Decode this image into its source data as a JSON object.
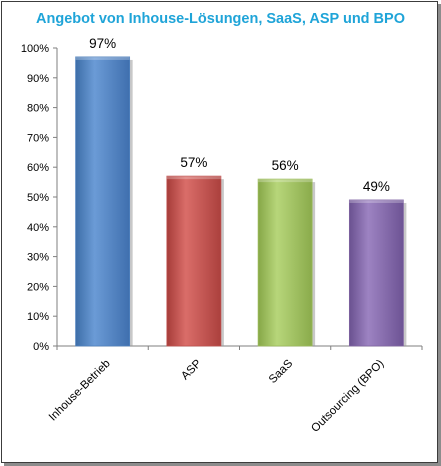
{
  "chart_data": {
    "type": "bar",
    "title": "Angebot von Inhouse-Lösungen, SaaS, ASP und BPO",
    "categories": [
      "Inhouse-Betrieb",
      "ASP",
      "SaaS",
      "Outsourcing (BPO)"
    ],
    "values": [
      97,
      57,
      56,
      49
    ],
    "data_labels": [
      "97%",
      "57%",
      "56%",
      "49%"
    ],
    "colors": [
      "#4f81bd",
      "#c0504d",
      "#9bbb59",
      "#8064a2"
    ],
    "ylim": [
      0,
      100
    ],
    "yticks": [
      0,
      10,
      20,
      30,
      40,
      50,
      60,
      70,
      80,
      90,
      100
    ],
    "ytick_labels": [
      "0%",
      "10%",
      "20%",
      "30%",
      "40%",
      "50%",
      "60%",
      "70%",
      "80%",
      "90%",
      "100%"
    ],
    "xlabel": "",
    "ylabel": "",
    "grid": false,
    "legend": "none"
  }
}
